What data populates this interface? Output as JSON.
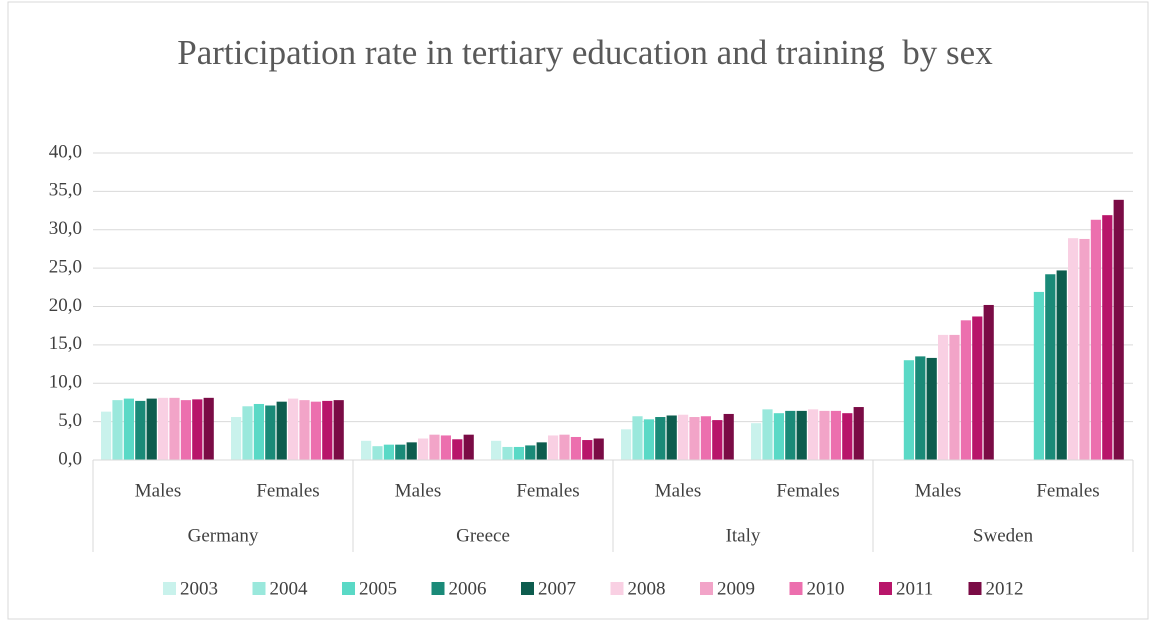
{
  "chart_data": {
    "type": "bar",
    "title": "Participation rate in tertiary education and training  by sex",
    "categories": [
      "Males",
      "Females",
      "Males",
      "Females",
      "Males",
      "Females",
      "Males",
      "Females"
    ],
    "groups": [
      "Germany",
      "Greece",
      "Italy",
      "Sweden"
    ],
    "series": [
      {
        "name": "2003",
        "color": "#c9f2ec",
        "values": [
          6.3,
          5.6,
          2.5,
          2.5,
          4.0,
          4.8,
          null,
          null
        ]
      },
      {
        "name": "2004",
        "color": "#9ae8dc",
        "values": [
          7.8,
          7.0,
          1.8,
          1.7,
          5.7,
          6.6,
          null,
          null
        ]
      },
      {
        "name": "2005",
        "color": "#5ad9c6",
        "values": [
          8.0,
          7.3,
          2.0,
          1.7,
          5.3,
          6.1,
          13.0,
          21.9
        ]
      },
      {
        "name": "2006",
        "color": "#1a8a78",
        "values": [
          7.7,
          7.1,
          2.0,
          1.9,
          5.6,
          6.4,
          13.5,
          24.2
        ]
      },
      {
        "name": "2007",
        "color": "#0d5c4e",
        "values": [
          8.0,
          7.6,
          2.3,
          2.3,
          5.8,
          6.4,
          13.3,
          24.7
        ]
      },
      {
        "name": "2008",
        "color": "#f9d0e3",
        "values": [
          8.1,
          8.0,
          2.8,
          3.2,
          5.9,
          6.6,
          16.3,
          28.9
        ]
      },
      {
        "name": "2009",
        "color": "#f2a4c8",
        "values": [
          8.1,
          7.8,
          3.3,
          3.3,
          5.6,
          6.4,
          16.3,
          28.8
        ]
      },
      {
        "name": "2010",
        "color": "#ec6fae",
        "values": [
          7.8,
          7.6,
          3.2,
          3.0,
          5.7,
          6.4,
          18.2,
          31.3
        ]
      },
      {
        "name": "2011",
        "color": "#b8156a",
        "values": [
          7.9,
          7.7,
          2.7,
          2.6,
          5.2,
          6.1,
          18.7,
          31.9
        ]
      },
      {
        "name": "2012",
        "color": "#7a0b45",
        "values": [
          8.1,
          7.8,
          3.3,
          2.8,
          6.0,
          6.9,
          20.2,
          33.9
        ]
      }
    ],
    "ylim": [
      0,
      40
    ],
    "yticks": [
      {
        "value": 0,
        "label": "0,0"
      },
      {
        "value": 5,
        "label": "5,0"
      },
      {
        "value": 10,
        "label": "10,0"
      },
      {
        "value": 15,
        "label": "15,0"
      },
      {
        "value": 20,
        "label": "20,0"
      },
      {
        "value": 25,
        "label": "25,0"
      },
      {
        "value": 30,
        "label": "30,0"
      },
      {
        "value": 35,
        "label": "35,0"
      },
      {
        "value": 40,
        "label": "40,0"
      }
    ],
    "grid": true,
    "legend": "bottom"
  }
}
